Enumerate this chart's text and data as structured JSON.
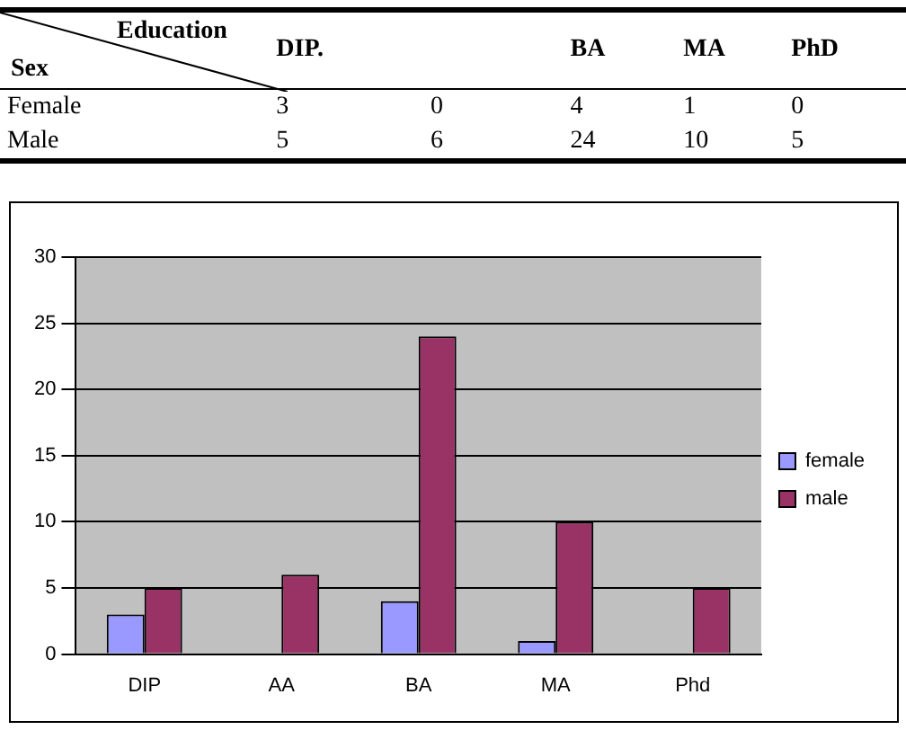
{
  "chart_data": [
    {
      "type": "heatmap",
      "xlabel": "Education",
      "ylabel": "Sex",
      "categories": [
        "DIP.",
        null,
        "BA",
        "MA",
        "PhD"
      ],
      "y_categories": [
        "Female",
        "Male"
      ],
      "cells": [
        [
          3,
          0,
          4,
          1,
          0
        ],
        [
          5,
          6,
          24,
          10,
          5
        ]
      ],
      "data_labels": true
    },
    {
      "type": "bar",
      "categories": [
        "DIP",
        "AA",
        "BA",
        "MA",
        "Phd"
      ],
      "series": [
        {
          "name": "female",
          "color": "#9999ff",
          "values": [
            3,
            0,
            4,
            1,
            0
          ]
        },
        {
          "name": "male",
          "color": "#993366",
          "values": [
            5,
            6,
            24,
            10,
            5
          ]
        }
      ],
      "ylim": [
        0,
        30
      ],
      "yticks": [
        0,
        5,
        10,
        15,
        20,
        25,
        30
      ],
      "grid": "y",
      "legend": "right"
    }
  ]
}
